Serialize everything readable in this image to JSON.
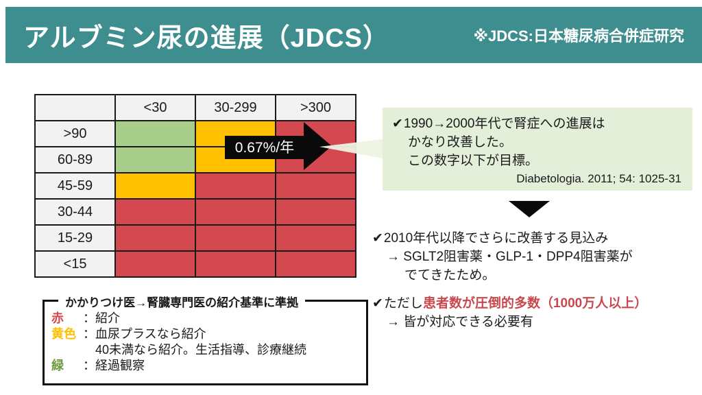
{
  "header": {
    "title": "アルブミン尿の進展（JDCS）",
    "subtitle": "※JDCS:日本糖尿病合併症研究",
    "bg_color": "#3f8e8f",
    "text_color": "#ffffff"
  },
  "matrix": {
    "corner_label": "",
    "col_headers": [
      "<30",
      "30-299",
      ">300"
    ],
    "row_headers": [
      ">90",
      "60-89",
      "45-59",
      "30-44",
      "15-29",
      "<15"
    ],
    "cells": [
      [
        "green",
        "yellow",
        "red"
      ],
      [
        "green",
        "yellow",
        "red"
      ],
      [
        "yellow",
        "red",
        "red"
      ],
      [
        "red",
        "red",
        "red"
      ],
      [
        "red",
        "red",
        "red"
      ],
      [
        "red",
        "red",
        "red"
      ]
    ],
    "cell_colors": {
      "green": "#a9ce8c",
      "yellow": "#ffc000",
      "red": "#d4494f"
    },
    "header_bg": "#f2f2f2",
    "arrow_label": "0.67%/年",
    "arrow_color": "#0a0a0a"
  },
  "callout": {
    "bg_color": "#e4efda",
    "lines": [
      "1990→2000年代で腎症への進展は",
      "かなり改善した。",
      "この数字以下が目標。"
    ],
    "citation": "Diabetologia. 2011; 54: 1025-31"
  },
  "bullets": {
    "first": {
      "line1": "2010年代以降でさらに改善する見込み",
      "line2": "→ SGLT2阻害薬・GLP-1・DPP4阻害薬が",
      "line3": "でてきたため。"
    },
    "second": {
      "prefix": "ただし",
      "highlight": "患者数が圧倒的多数（1000万人以上）",
      "highlight_color": "#c9484e",
      "line2": "→ 皆が対応できる必要有"
    }
  },
  "legend": {
    "title": "かかりつけ医→腎臓専門医の紹介基準に準拠",
    "items": [
      {
        "label": "赤",
        "label_color": "#d4494f",
        "text": "：紹介"
      },
      {
        "label": "黄色",
        "label_color": "#ffc000",
        "text": "：血尿プラスなら紹介"
      },
      {
        "label": "",
        "label_color": "",
        "text": "　40未満なら紹介。生活指導、診療継続"
      },
      {
        "label": "緑",
        "label_color": "#6b9b41",
        "text": "：経過観察"
      }
    ]
  },
  "icons": {
    "check": "✔"
  }
}
